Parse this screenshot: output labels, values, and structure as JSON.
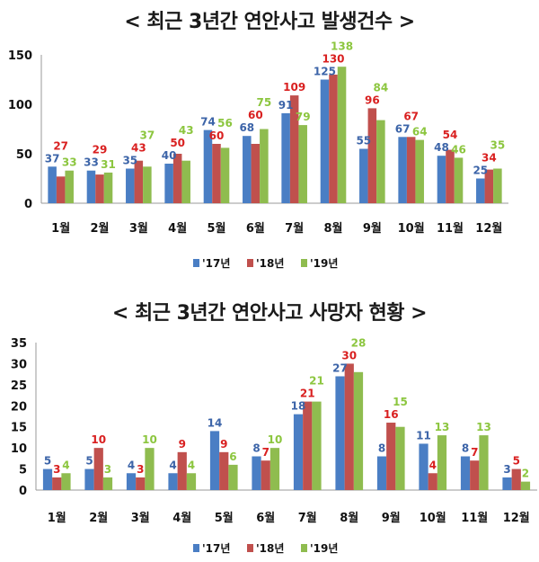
{
  "chart_data": [
    {
      "type": "bar",
      "title": "< 최근 3년간 연안사고 발생건수 >",
      "categories": [
        "1월",
        "2월",
        "3월",
        "4월",
        "5월",
        "6월",
        "7월",
        "8월",
        "9월",
        "10월",
        "11월",
        "12월"
      ],
      "ylim": [
        0,
        150
      ],
      "yticks": [
        0,
        50,
        100,
        150
      ],
      "grid": false,
      "legend": "bottom",
      "series": [
        {
          "name": "'17년",
          "color": "#4a7ec4",
          "label_color": "#3c64a8",
          "values": [
            37,
            33,
            35,
            40,
            74,
            68,
            91,
            125,
            55,
            67,
            48,
            25
          ]
        },
        {
          "name": "'18년",
          "color": "#c0504d",
          "label_color": "#d92020",
          "values": [
            27,
            29,
            43,
            50,
            60,
            60,
            109,
            130,
            96,
            67,
            54,
            34
          ]
        },
        {
          "name": "'19년",
          "color": "#8fbc4f",
          "label_color": "#8cc63f",
          "values": [
            33,
            31,
            37,
            43,
            56,
            75,
            79,
            138,
            84,
            64,
            46,
            35
          ]
        }
      ]
    },
    {
      "type": "bar",
      "title": "< 최근 3년간 연안사고 사망자 현황 >",
      "categories": [
        "1월",
        "2월",
        "3월",
        "4월",
        "5월",
        "6월",
        "7월",
        "8월",
        "9월",
        "10월",
        "11월",
        "12월"
      ],
      "ylim": [
        0,
        35
      ],
      "yticks": [
        0,
        5,
        10,
        15,
        20,
        25,
        30,
        35
      ],
      "grid": false,
      "legend": "bottom",
      "series": [
        {
          "name": "'17년",
          "color": "#4a7ec4",
          "label_color": "#3c64a8",
          "values": [
            5,
            5,
            4,
            4,
            14,
            8,
            18,
            27,
            8,
            11,
            8,
            3
          ]
        },
        {
          "name": "'18년",
          "color": "#c0504d",
          "label_color": "#d92020",
          "values": [
            3,
            10,
            3,
            9,
            9,
            7,
            21,
            30,
            16,
            4,
            7,
            5
          ]
        },
        {
          "name": "'19年",
          "color": "#8fbc4f",
          "label_color": "#8cc63f",
          "values": [
            4,
            3,
            10,
            4,
            6,
            10,
            21,
            28,
            15,
            13,
            13,
            2
          ]
        }
      ]
    }
  ]
}
